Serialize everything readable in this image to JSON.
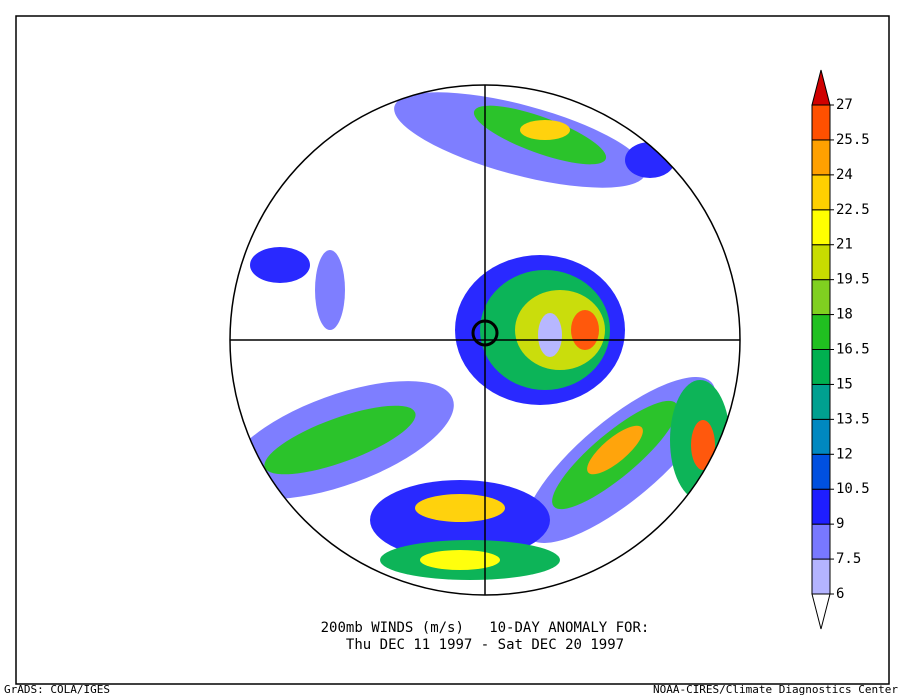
{
  "title_lines": [
    "200mb WINDS (m/s)   10-DAY ANOMALY FOR:",
    "Thu DEC 11 1997 - Sat DEC 20 1997"
  ],
  "footer_left": "GrADS: COLA/IGES",
  "footer_right": "NOAA-CIRES/Climate Diagnostics Center",
  "colorbar": {
    "levels": [
      6,
      7.5,
      9,
      10.5,
      12,
      13.5,
      15,
      16.5,
      18,
      19.5,
      21,
      22.5,
      24,
      25.5,
      27
    ],
    "colors": [
      "#ffffff",
      "#b4b4ff",
      "#7878ff",
      "#1e1eff",
      "#0050e0",
      "#0088c0",
      "#00a090",
      "#00b050",
      "#20c020",
      "#80d020",
      "#c8dc00",
      "#ffff00",
      "#ffd000",
      "#ffa000",
      "#ff5000",
      "#d00000"
    ]
  }
}
